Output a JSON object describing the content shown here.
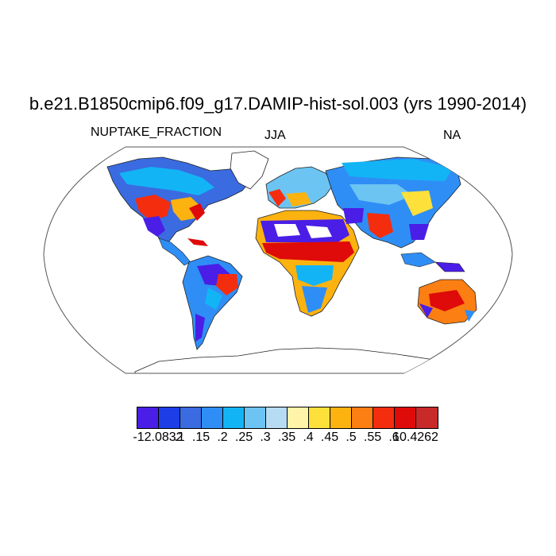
{
  "title": "b.e21.B1850cmip6.f09_g17.DAMIP-hist-sol.003 (yrs 1990-2014)",
  "left_label": "NUPTAKE_FRACTION",
  "center_label": "JJA",
  "right_label": "NA",
  "projection": "robinson",
  "colorbar": {
    "colors": [
      "#4a1ee6",
      "#1d3ee6",
      "#3a6be0",
      "#2f8ef5",
      "#13b4f5",
      "#6cc4f2",
      "#b6dcf3",
      "#fff4a8",
      "#fde03a",
      "#fdb30f",
      "#fb7f12",
      "#f42d0e",
      "#df0a0a",
      "#c82a2a"
    ],
    "labels": [
      "-12.0832",
      ".1",
      ".15",
      ".2",
      ".25",
      ".3",
      ".35",
      ".4",
      ".45",
      ".5",
      ".55",
      ".6",
      "10.4262"
    ]
  }
}
